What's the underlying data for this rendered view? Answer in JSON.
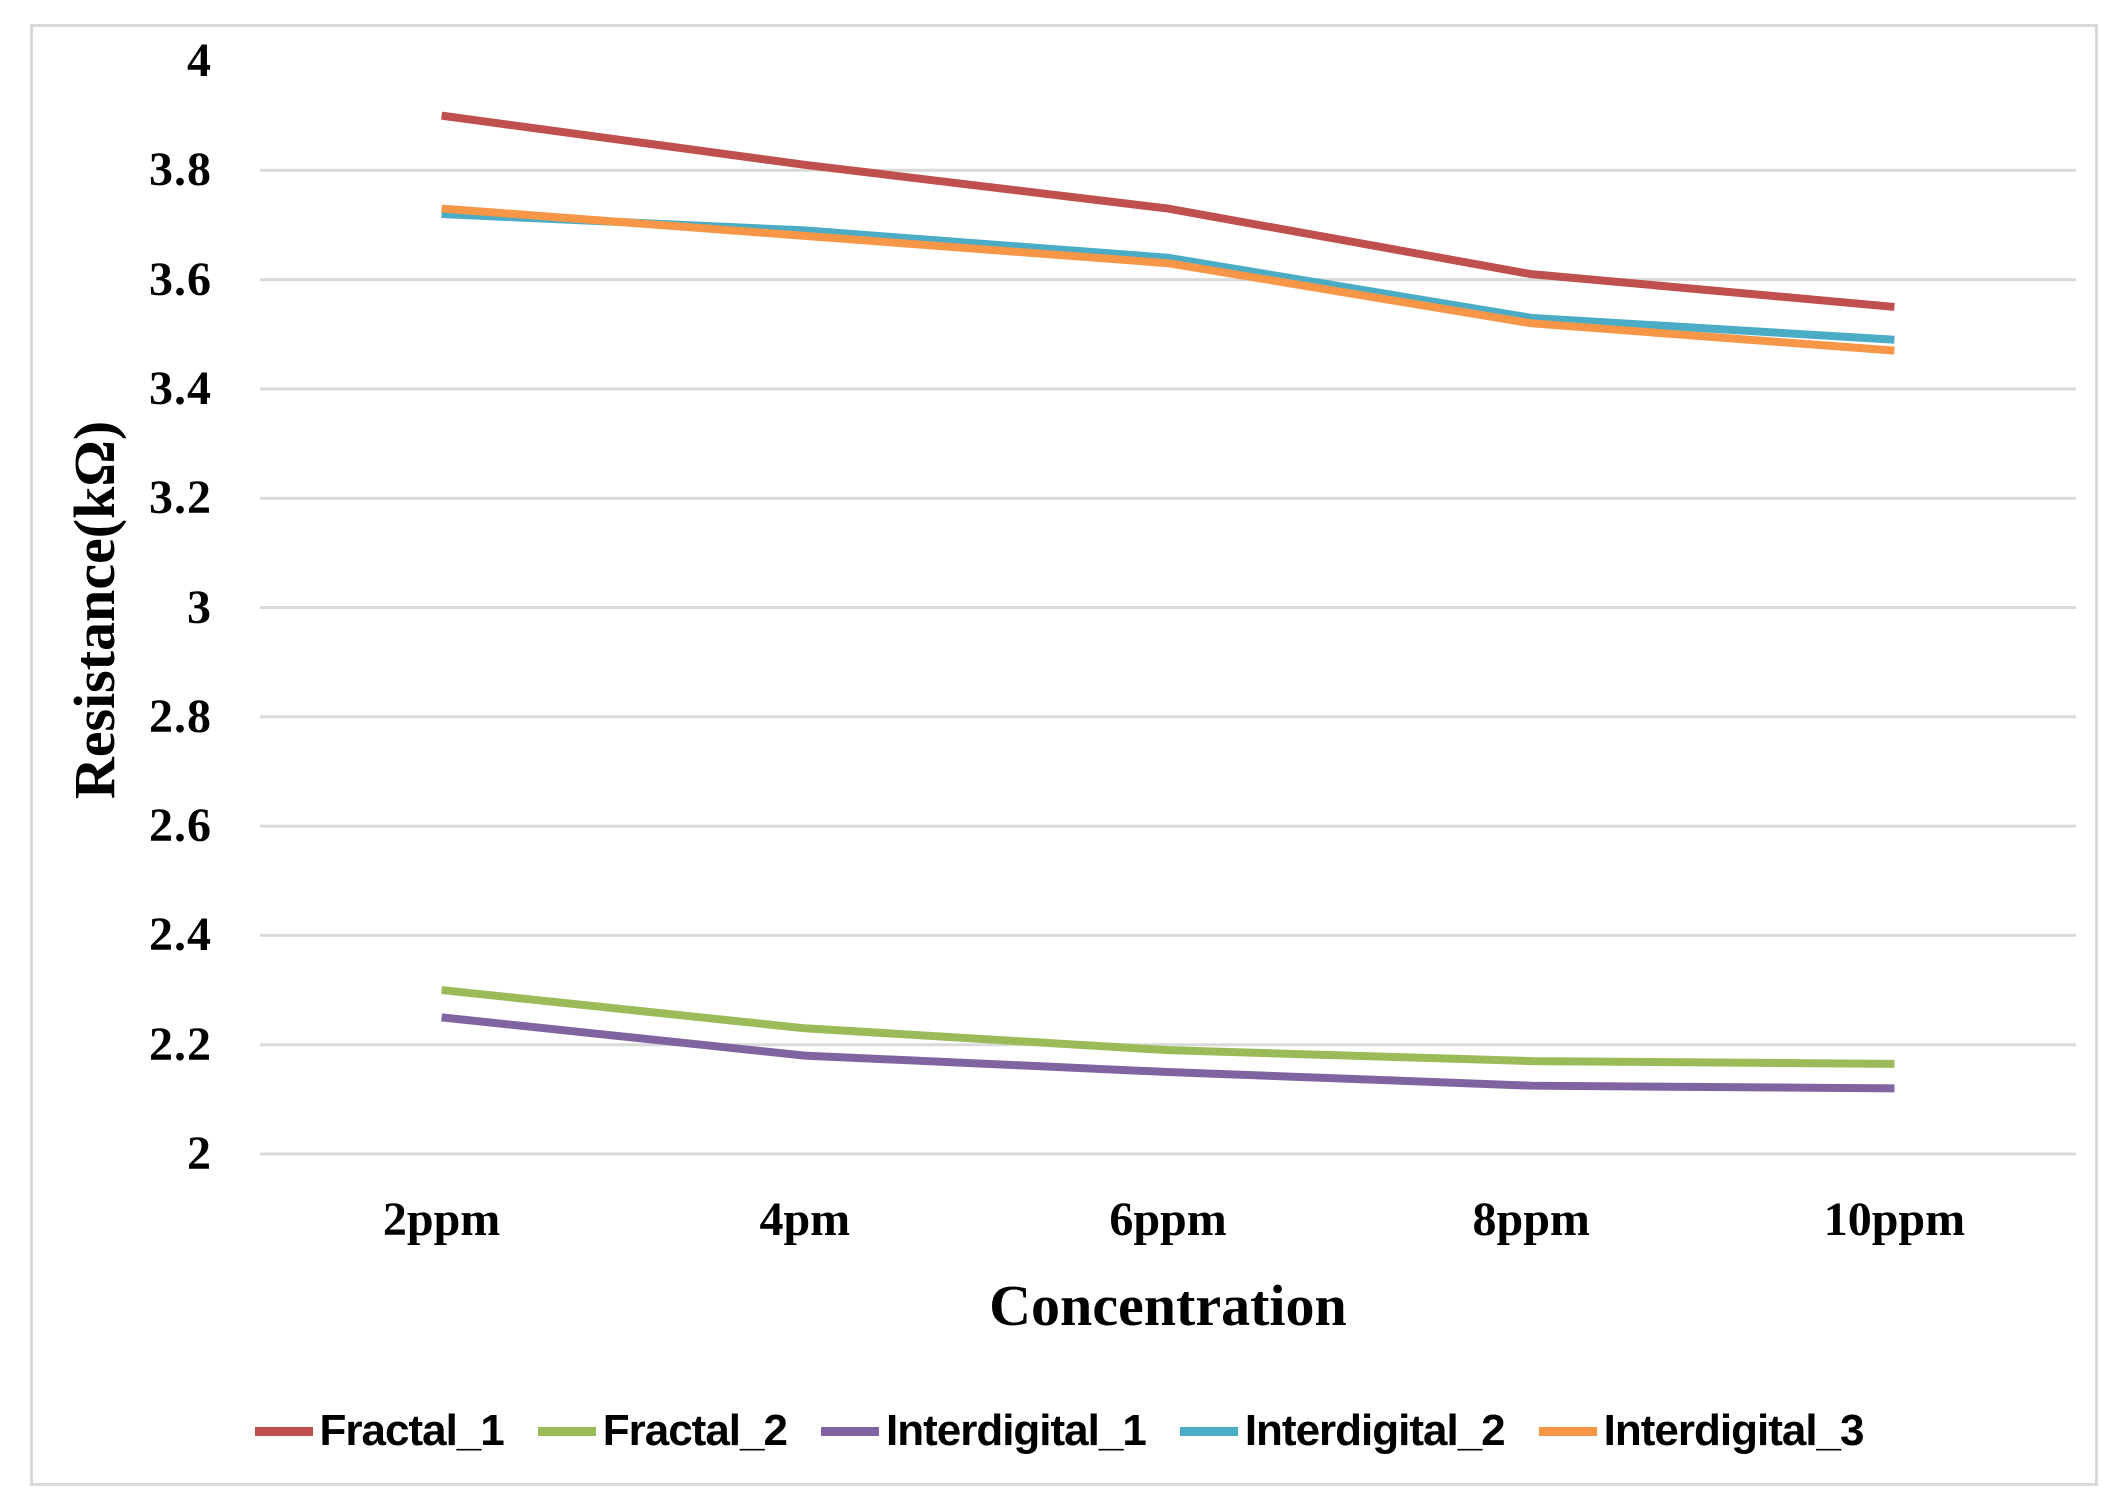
{
  "chart_data": {
    "type": "line",
    "title": "",
    "xlabel": "Concentration",
    "ylabel": "Resistance(kΩ)",
    "categories": [
      "2ppm",
      "4pm",
      "6ppm",
      "8ppm",
      "10ppm"
    ],
    "y_ticks": [
      "4",
      "3.8",
      "3.6",
      "3.4",
      "3.2",
      "3",
      "2.8",
      "2.6",
      "2.4",
      "2.2",
      "2"
    ],
    "ylim": [
      2,
      4
    ],
    "y_tick_step": 0.2,
    "grid": "horizontal",
    "grid_color": "#d9d9d9",
    "frame_color": "#d9d9d9",
    "legend_position": "bottom",
    "series": [
      {
        "name": "Fractal_1",
        "color": "#C0504D",
        "values": [
          3.9,
          3.81,
          3.73,
          3.61,
          3.55
        ]
      },
      {
        "name": "Fractal_2",
        "color": "#9BBB59",
        "values": [
          2.3,
          2.23,
          2.19,
          2.17,
          2.165
        ]
      },
      {
        "name": "Interdigital_1",
        "color": "#8064A2",
        "values": [
          2.25,
          2.18,
          2.15,
          2.125,
          2.12
        ]
      },
      {
        "name": "Interdigital_2",
        "color": "#4BACC6",
        "values": [
          3.72,
          3.69,
          3.64,
          3.53,
          3.49
        ]
      },
      {
        "name": "Interdigital_3",
        "color": "#F79646",
        "values": [
          3.73,
          3.68,
          3.63,
          3.52,
          3.47
        ]
      }
    ]
  }
}
